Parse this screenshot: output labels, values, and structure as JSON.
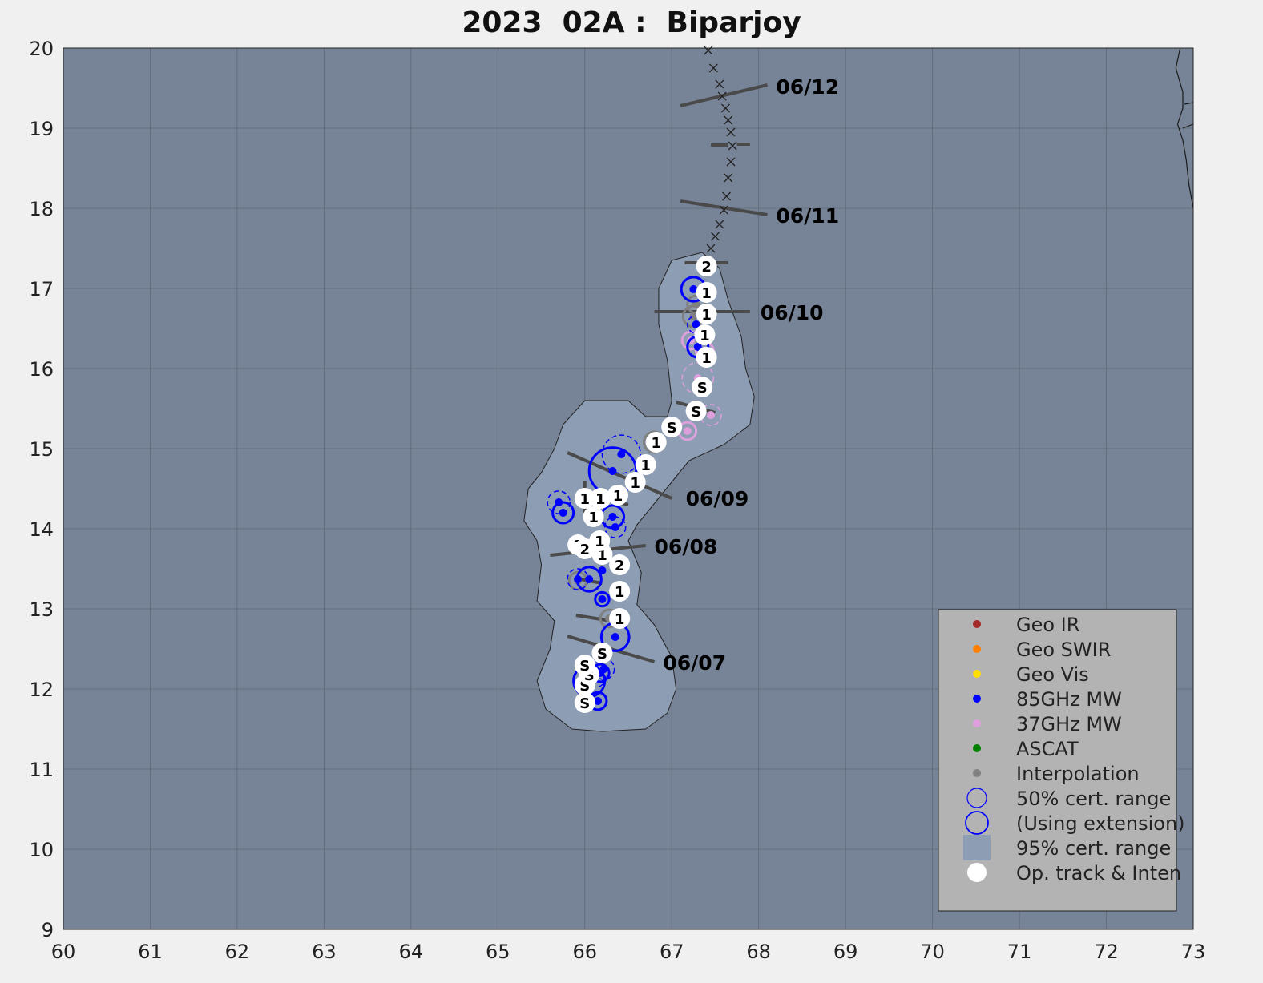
{
  "title": "2023  02A :  Biparjoy",
  "colors": {
    "ocean": "#778497",
    "cone": "#8d9db3",
    "grid": "#5d6876",
    "land_edge": "#1a1a1a",
    "legend_bg": "#b3b3b3",
    "geo_ir": "#a52a2a",
    "geo_swir": "#ff8000",
    "geo_vis": "#ffe000",
    "mw85": "#0000ff",
    "mw37": "#dda0dd",
    "ascat": "#008000",
    "interp": "#808080",
    "op_track": "#ffffff",
    "forecast_line": "#4a4a4a"
  },
  "chart_data": {
    "type": "scatter",
    "title": "2023  02A :  Biparjoy",
    "xlim": [
      60,
      73
    ],
    "ylim": [
      9,
      20
    ],
    "x_ticks": [
      60,
      61,
      62,
      63,
      64,
      65,
      66,
      67,
      68,
      69,
      70,
      71,
      72,
      73
    ],
    "y_ticks": [
      9,
      10,
      11,
      12,
      13,
      14,
      15,
      16,
      17,
      18,
      19,
      20
    ],
    "grid": true,
    "legend_position": "bottom-right",
    "legend": [
      {
        "label": "Geo IR",
        "kind": "dot",
        "color_key": "geo_ir"
      },
      {
        "label": "Geo SWIR",
        "kind": "dot",
        "color_key": "geo_swir"
      },
      {
        "label": "Geo Vis",
        "kind": "dot",
        "color_key": "geo_vis"
      },
      {
        "label": "85GHz MW",
        "kind": "dot",
        "color_key": "mw85"
      },
      {
        "label": "37GHz MW",
        "kind": "dot",
        "color_key": "mw37"
      },
      {
        "label": "ASCAT",
        "kind": "dot",
        "color_key": "ascat"
      },
      {
        "label": "Interpolation",
        "kind": "dot",
        "color_key": "interp"
      },
      {
        "label": "50% cert. range",
        "kind": "circle"
      },
      {
        "label": "(Using extension)",
        "kind": "circle-thick"
      },
      {
        "label": "95% cert. range",
        "kind": "square"
      },
      {
        "label": "Op. track & Inten",
        "kind": "white-dot"
      }
    ],
    "date_labels": [
      {
        "text": "06/07",
        "x": 66.9,
        "y": 12.33
      },
      {
        "text": "06/08",
        "x": 66.8,
        "y": 13.78
      },
      {
        "text": "06/09",
        "x": 67.16,
        "y": 14.38
      },
      {
        "text": "06/10",
        "x": 68.02,
        "y": 16.7
      },
      {
        "text": "06/11",
        "x": 68.2,
        "y": 17.91
      },
      {
        "text": "06/12",
        "x": 68.2,
        "y": 19.52
      }
    ],
    "day_lines": [
      {
        "x1": 65.8,
        "y1": 12.66,
        "x2": 66.8,
        "y2": 12.34
      },
      {
        "x1": 65.6,
        "y1": 13.67,
        "x2": 66.7,
        "y2": 13.79
      },
      {
        "x1": 65.8,
        "y1": 14.95,
        "x2": 67.0,
        "y2": 14.38
      },
      {
        "x1": 66.8,
        "y1": 16.71,
        "x2": 67.9,
        "y2": 16.71
      },
      {
        "x1": 67.1,
        "y1": 18.09,
        "x2": 68.1,
        "y2": 17.92
      },
      {
        "x1": 67.1,
        "y1": 19.28,
        "x2": 68.1,
        "y2": 19.54
      }
    ],
    "short_ticks": [
      {
        "x1": 65.9,
        "y1": 12.92,
        "x2": 66.3,
        "y2": 12.85
      },
      {
        "x1": 65.9,
        "y1": 13.38,
        "x2": 66.2,
        "y2": 13.32
      },
      {
        "x1": 66.0,
        "y1": 14.6,
        "x2": 66.0,
        "y2": 14.2
      },
      {
        "x1": 66.3,
        "y1": 14.35,
        "x2": 66.5,
        "y2": 14.3
      },
      {
        "x1": 67.05,
        "y1": 15.58,
        "x2": 67.5,
        "y2": 15.45
      },
      {
        "x1": 67.15,
        "y1": 17.32,
        "x2": 67.65,
        "y2": 17.32
      },
      {
        "x1": 67.45,
        "y1": 18.79,
        "x2": 67.65,
        "y2": 18.79
      },
      {
        "x1": 67.75,
        "y1": 18.8,
        "x2": 67.9,
        "y2": 18.8
      }
    ],
    "cone_outline": [
      [
        66.7,
        11.5
      ],
      [
        66.95,
        11.7
      ],
      [
        67.05,
        12.0
      ],
      [
        67.0,
        12.4
      ],
      [
        66.8,
        12.8
      ],
      [
        66.6,
        13.05
      ],
      [
        66.65,
        13.45
      ],
      [
        66.5,
        13.85
      ],
      [
        66.6,
        14.05
      ],
      [
        66.9,
        14.45
      ],
      [
        67.2,
        14.85
      ],
      [
        67.6,
        15.05
      ],
      [
        67.9,
        15.3
      ],
      [
        67.95,
        15.65
      ],
      [
        67.85,
        16.0
      ],
      [
        67.8,
        16.4
      ],
      [
        67.65,
        16.85
      ],
      [
        67.55,
        17.25
      ],
      [
        67.35,
        17.45
      ],
      [
        67.0,
        17.35
      ],
      [
        66.85,
        17.0
      ],
      [
        66.85,
        16.55
      ],
      [
        66.95,
        16.1
      ],
      [
        67.0,
        15.6
      ],
      [
        66.95,
        15.4
      ],
      [
        66.7,
        15.4
      ],
      [
        66.5,
        15.6
      ],
      [
        66.0,
        15.6
      ],
      [
        65.75,
        15.3
      ],
      [
        65.65,
        15.0
      ],
      [
        65.5,
        14.7
      ],
      [
        65.35,
        14.5
      ],
      [
        65.3,
        14.1
      ],
      [
        65.45,
        13.85
      ],
      [
        65.5,
        13.55
      ],
      [
        65.45,
        13.1
      ],
      [
        65.65,
        12.85
      ],
      [
        65.6,
        12.5
      ],
      [
        65.45,
        12.1
      ],
      [
        65.55,
        11.75
      ],
      [
        65.85,
        11.5
      ],
      [
        66.2,
        11.47
      ]
    ],
    "op_track": [
      {
        "x": 66.0,
        "y": 11.83,
        "label": "S"
      },
      {
        "x": 66.0,
        "y": 12.05,
        "label": "S"
      },
      {
        "x": 66.05,
        "y": 12.18,
        "label": "S"
      },
      {
        "x": 66.0,
        "y": 12.3,
        "label": "S"
      },
      {
        "x": 66.2,
        "y": 12.45,
        "label": "S"
      },
      {
        "x": 66.4,
        "y": 12.88,
        "label": "1"
      },
      {
        "x": 66.4,
        "y": 13.22,
        "label": "1"
      },
      {
        "x": 66.4,
        "y": 13.55,
        "label": "2"
      },
      {
        "x": 66.2,
        "y": 13.68,
        "label": "1"
      },
      {
        "x": 66.17,
        "y": 13.85,
        "label": "1"
      },
      {
        "x": 65.92,
        "y": 13.8,
        "label": "1"
      },
      {
        "x": 66.0,
        "y": 13.75,
        "label": "2"
      },
      {
        "x": 66.1,
        "y": 14.15,
        "label": "1"
      },
      {
        "x": 66.0,
        "y": 14.38,
        "label": "1"
      },
      {
        "x": 66.18,
        "y": 14.38,
        "label": "1"
      },
      {
        "x": 66.38,
        "y": 14.42,
        "label": "1"
      },
      {
        "x": 66.58,
        "y": 14.58,
        "label": "1"
      },
      {
        "x": 66.7,
        "y": 14.8,
        "label": "1"
      },
      {
        "x": 66.82,
        "y": 15.08,
        "label": "1"
      },
      {
        "x": 67.0,
        "y": 15.27,
        "label": "S"
      },
      {
        "x": 67.28,
        "y": 15.47,
        "label": "S"
      },
      {
        "x": 67.35,
        "y": 15.77,
        "label": "S"
      },
      {
        "x": 67.4,
        "y": 16.14,
        "label": "1"
      },
      {
        "x": 67.38,
        "y": 16.42,
        "label": "1"
      },
      {
        "x": 67.4,
        "y": 16.68,
        "label": "1"
      },
      {
        "x": 67.4,
        "y": 16.95,
        "label": "1"
      },
      {
        "x": 67.4,
        "y": 17.28,
        "label": "2"
      }
    ],
    "forecast_track": [
      [
        67.45,
        17.5
      ],
      [
        67.5,
        17.65
      ],
      [
        67.55,
        17.8
      ],
      [
        67.6,
        17.98
      ],
      [
        67.63,
        18.15
      ],
      [
        67.65,
        18.38
      ],
      [
        67.68,
        18.58
      ],
      [
        67.7,
        18.78
      ],
      [
        67.68,
        18.95
      ],
      [
        67.65,
        19.1
      ],
      [
        67.62,
        19.25
      ],
      [
        67.58,
        19.4
      ],
      [
        67.55,
        19.55
      ],
      [
        67.48,
        19.75
      ],
      [
        67.42,
        19.97
      ]
    ],
    "mw85_fixes": [
      {
        "x": 66.15,
        "y": 11.85,
        "r": 0.1,
        "style": "solid"
      },
      {
        "x": 66.05,
        "y": 12.1,
        "r": 0.18,
        "style": "solid"
      },
      {
        "x": 66.12,
        "y": 12.15,
        "r": 0.12,
        "style": "dashed"
      },
      {
        "x": 66.18,
        "y": 12.2,
        "r": 0.1,
        "style": "solid"
      },
      {
        "x": 66.22,
        "y": 12.25,
        "r": 0.12,
        "style": "dashed"
      },
      {
        "x": 66.35,
        "y": 12.65,
        "r": 0.16,
        "style": "solid"
      },
      {
        "x": 66.2,
        "y": 13.12,
        "r": 0.08,
        "style": "solid"
      },
      {
        "x": 66.05,
        "y": 13.37,
        "r": 0.14,
        "style": "solid"
      },
      {
        "x": 65.92,
        "y": 13.37,
        "r": 0.12,
        "style": "dashed"
      },
      {
        "x": 66.2,
        "y": 13.48,
        "r": 0.0,
        "style": "dot"
      },
      {
        "x": 66.35,
        "y": 14.02,
        "r": 0.12,
        "style": "dashed"
      },
      {
        "x": 66.32,
        "y": 14.15,
        "r": 0.13,
        "style": "solid"
      },
      {
        "x": 65.75,
        "y": 14.2,
        "r": 0.12,
        "style": "solid"
      },
      {
        "x": 65.7,
        "y": 14.33,
        "r": 0.13,
        "style": "dashed"
      },
      {
        "x": 66.32,
        "y": 14.72,
        "r": 0.27,
        "style": "solid"
      },
      {
        "x": 66.42,
        "y": 14.93,
        "r": 0.22,
        "style": "dashed"
      },
      {
        "x": 67.3,
        "y": 16.27,
        "r": 0.12,
        "style": "solid"
      },
      {
        "x": 67.28,
        "y": 16.55,
        "r": 0.1,
        "style": "dashed"
      },
      {
        "x": 67.25,
        "y": 16.99,
        "r": 0.14,
        "style": "solid"
      }
    ],
    "mw37_fixes": [
      {
        "x": 67.18,
        "y": 15.22,
        "r": 0.1,
        "style": "solid"
      },
      {
        "x": 67.45,
        "y": 15.42,
        "r": 0.12,
        "style": "dashed"
      },
      {
        "x": 67.3,
        "y": 15.88,
        "r": 0.18,
        "style": "dashed"
      },
      {
        "x": 67.38,
        "y": 16.22,
        "r": 0.1,
        "style": "solid"
      },
      {
        "x": 67.22,
        "y": 16.35,
        "r": 0.1,
        "style": "solid"
      }
    ],
    "interp_fixes": [
      {
        "x": 66.8,
        "y": 15.08,
        "r": 0.12
      },
      {
        "x": 66.28,
        "y": 12.88,
        "r": 0.1
      },
      {
        "x": 65.92,
        "y": 13.35,
        "r": 0.1
      },
      {
        "x": 67.25,
        "y": 16.65,
        "r": 0.12
      },
      {
        "x": 67.28,
        "y": 16.8,
        "r": 0.1
      }
    ],
    "coast_paths": [
      [
        [
          72.85,
          20.0
        ],
        [
          72.8,
          19.75
        ],
        [
          72.88,
          19.45
        ],
        [
          72.88,
          19.25
        ],
        [
          72.82,
          19.05
        ],
        [
          72.88,
          18.85
        ],
        [
          72.92,
          18.6
        ],
        [
          72.95,
          18.3
        ],
        [
          73.0,
          18.0
        ]
      ],
      [
        [
          72.9,
          19.3
        ],
        [
          73.0,
          19.32
        ]
      ],
      [
        [
          72.88,
          19.0
        ],
        [
          73.0,
          19.05
        ]
      ]
    ]
  }
}
